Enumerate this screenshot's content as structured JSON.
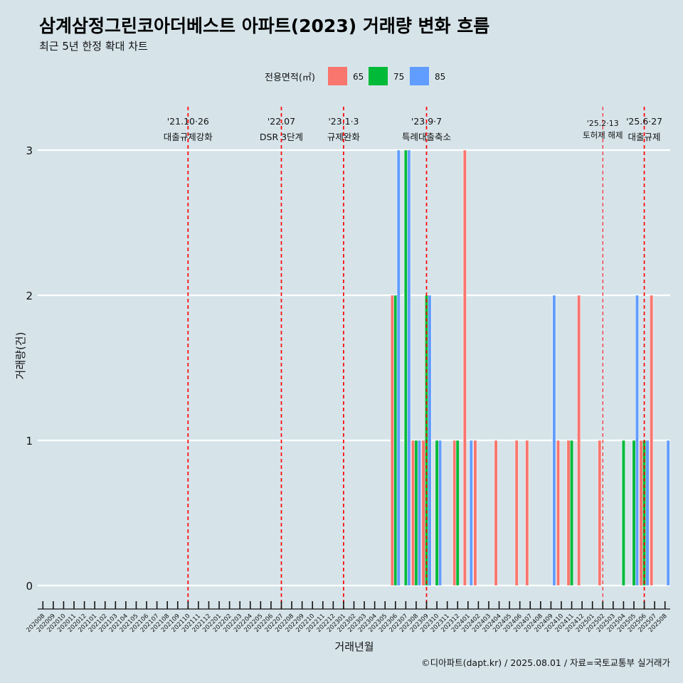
{
  "chart_data": {
    "type": "bar",
    "title": "삼계삼정그린코아더베스트 아파트(2023) 거래량 변화 흐름",
    "subtitle": "최근 5년 한정 확대 차트",
    "xlabel": "거래년월",
    "ylabel": "거래량(건)",
    "ylim": [
      -0.15,
      3.3
    ],
    "yticks": [
      0,
      1,
      2,
      3
    ],
    "grid": true,
    "legend": {
      "title": "전용면적(㎡)",
      "position": "top",
      "entries": [
        {
          "name": "65",
          "color": "#F8766D"
        },
        {
          "name": "75",
          "color": "#00BA38"
        },
        {
          "name": "85",
          "color": "#619CFF"
        }
      ]
    },
    "categories": [
      "202008",
      "202009",
      "202010",
      "202011",
      "202012",
      "202101",
      "202102",
      "202103",
      "202104",
      "202105",
      "202106",
      "202107",
      "202108",
      "202109",
      "202110",
      "202111",
      "202112",
      "202201",
      "202202",
      "202203",
      "202204",
      "202205",
      "202206",
      "202207",
      "202208",
      "202209",
      "202210",
      "202211",
      "202212",
      "202301",
      "202302",
      "202303",
      "202304",
      "202305",
      "202306",
      "202307",
      "202308",
      "202309",
      "202310",
      "202311",
      "202312",
      "202401",
      "202402",
      "202403",
      "202404",
      "202405",
      "202406",
      "202407",
      "202408",
      "202409",
      "202410",
      "202411",
      "202412",
      "202501",
      "202502",
      "202503",
      "202504",
      "202505",
      "202506",
      "202507",
      "202508"
    ],
    "series": [
      {
        "name": "65",
        "color": "#F8766D",
        "values": [
          0,
          0,
          0,
          0,
          0,
          0,
          0,
          0,
          0,
          0,
          0,
          0,
          0,
          0,
          0,
          0,
          0,
          0,
          0,
          0,
          0,
          0,
          0,
          0,
          0,
          0,
          0,
          0,
          0,
          0,
          0,
          0,
          0,
          0,
          2,
          0,
          1,
          1,
          0,
          0,
          1,
          3,
          1,
          0,
          1,
          0,
          1,
          1,
          0,
          0,
          1,
          1,
          2,
          0,
          1,
          0,
          0,
          0,
          1,
          2,
          0
        ]
      },
      {
        "name": "75",
        "color": "#00BA38",
        "values": [
          0,
          0,
          0,
          0,
          0,
          0,
          0,
          0,
          0,
          0,
          0,
          0,
          0,
          0,
          0,
          0,
          0,
          0,
          0,
          0,
          0,
          0,
          0,
          0,
          0,
          0,
          0,
          0,
          0,
          0,
          0,
          0,
          0,
          0,
          2,
          3,
          1,
          2,
          1,
          0,
          1,
          0,
          0,
          0,
          0,
          0,
          0,
          0,
          0,
          0,
          0,
          1,
          0,
          0,
          0,
          0,
          1,
          1,
          1,
          0,
          0
        ]
      },
      {
        "name": "85",
        "color": "#619CFF",
        "values": [
          0,
          0,
          0,
          0,
          0,
          0,
          0,
          0,
          0,
          0,
          0,
          0,
          0,
          0,
          0,
          0,
          0,
          0,
          0,
          0,
          0,
          0,
          0,
          0,
          0,
          0,
          0,
          0,
          0,
          0,
          0,
          0,
          0,
          0,
          3,
          3,
          1,
          2,
          1,
          0,
          0,
          1,
          0,
          0,
          0,
          0,
          0,
          0,
          0,
          2,
          0,
          0,
          0,
          0,
          0,
          0,
          0,
          2,
          1,
          0,
          1
        ]
      }
    ],
    "annotations": [
      {
        "category": "202110",
        "date": "'21.10·26",
        "label": "대출규제강화",
        "style": "dashed"
      },
      {
        "category": "202207",
        "date": "'22.07",
        "label": "DSR 3단계",
        "style": "dashed"
      },
      {
        "category": "202301",
        "date": "'23.1·3",
        "label": "규제완화",
        "style": "dashed"
      },
      {
        "category": "202309",
        "date": "'23.9·7",
        "label": "특례대출축소",
        "style": "dashed"
      },
      {
        "category": "202502",
        "date": "'25.2·13",
        "label": "토허제 해제",
        "style": "thin"
      },
      {
        "category": "202506",
        "date": "'25.6·27",
        "label": "대출규제",
        "style": "dashed"
      }
    ]
  },
  "footer": {
    "caption": "©디아파트(dapt.kr) / 2025.08.01 / 자료=국토교통부 실거래가"
  }
}
